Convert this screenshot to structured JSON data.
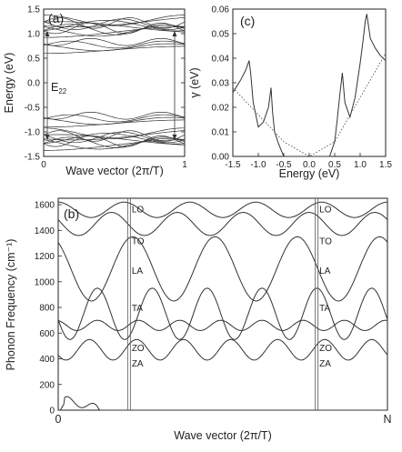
{
  "chart_data": [
    {
      "panel": "(a)",
      "type": "line",
      "xlabel": "Wave vector (2π/T)",
      "ylabel": "Energy (eV)",
      "xlim": [
        0,
        1
      ],
      "ylim": [
        -1.5,
        1.5
      ],
      "xticks": [
        "0",
        "1"
      ],
      "yticks": [
        "-1.5",
        "-1.0",
        "-0.5",
        "0.0",
        "0.5",
        "1.0",
        "1.5"
      ],
      "annotation": "E",
      "annotation_sub": "22",
      "band_groups": [
        {
          "center": 1.15,
          "spread": 0.12,
          "count": 10
        },
        {
          "center": -1.15,
          "spread": 0.12,
          "count": 10
        },
        {
          "center": 0.75,
          "spread": 0.08,
          "count": 4
        },
        {
          "center": -0.75,
          "spread": 0.08,
          "count": 4
        }
      ]
    },
    {
      "panel": "(c)",
      "type": "line",
      "xlabel": "Energy (eV)",
      "ylabel": "γ (eV)",
      "xlim": [
        -1.5,
        1.5
      ],
      "ylim": [
        0,
        0.06
      ],
      "xticks": [
        "-1.5",
        "-1.0",
        "-0.5",
        "0.0",
        "0.5",
        "1.0",
        "1.5"
      ],
      "yticks": [
        "0.00",
        "0.01",
        "0.02",
        "0.03",
        "0.04",
        "0.05",
        "0.06"
      ],
      "series": [
        {
          "style": "solid",
          "x": [
            -1.5,
            -1.35,
            -1.25,
            -1.18,
            -1.15,
            -1.1,
            -1.0,
            -0.9,
            -0.8,
            -0.75,
            -0.72,
            -0.68,
            -0.6,
            -0.5,
            -0.4,
            -0.3,
            -0.2,
            -0.1,
            0.0,
            0.1,
            0.2,
            0.3,
            0.4,
            0.5,
            0.55,
            0.6,
            0.65,
            0.7,
            0.8,
            0.9,
            1.0,
            1.05,
            1.1,
            1.13,
            1.2,
            1.3,
            1.4,
            1.5
          ],
          "y": [
            0.026,
            0.031,
            0.035,
            0.039,
            0.034,
            0.022,
            0.012,
            0.014,
            0.02,
            0.028,
            0.018,
            0.01,
            0.005,
            0.0,
            0.0,
            0.0,
            0.0,
            0.0,
            0.0,
            0.0,
            0.0,
            0.0,
            0.0,
            0.006,
            0.015,
            0.025,
            0.034,
            0.022,
            0.016,
            0.024,
            0.038,
            0.046,
            0.055,
            0.058,
            0.048,
            0.044,
            0.041,
            0.039
          ]
        },
        {
          "style": "dotted",
          "x": [
            -1.5,
            -0.5,
            0.0,
            0.5,
            1.5
          ],
          "y": [
            0.028,
            0.006,
            0.0,
            0.006,
            0.042
          ]
        }
      ]
    },
    {
      "panel": "(b)",
      "type": "line",
      "xlabel": "Wave vector (2π/T)",
      "ylabel": "Phonon Frequency (cm⁻¹)",
      "xlim": [
        0,
        1
      ],
      "ylim": [
        0,
        1650
      ],
      "xticks": [
        "0",
        "N"
      ],
      "yticks": [
        "0",
        "200",
        "400",
        "600",
        "800",
        "1000",
        "1200",
        "1400",
        "1600"
      ],
      "mode_labels": [
        "LO",
        "TO",
        "LA",
        "TA",
        "ZO",
        "ZA"
      ],
      "vertical_markers": [
        0.215,
        0.785
      ]
    }
  ]
}
